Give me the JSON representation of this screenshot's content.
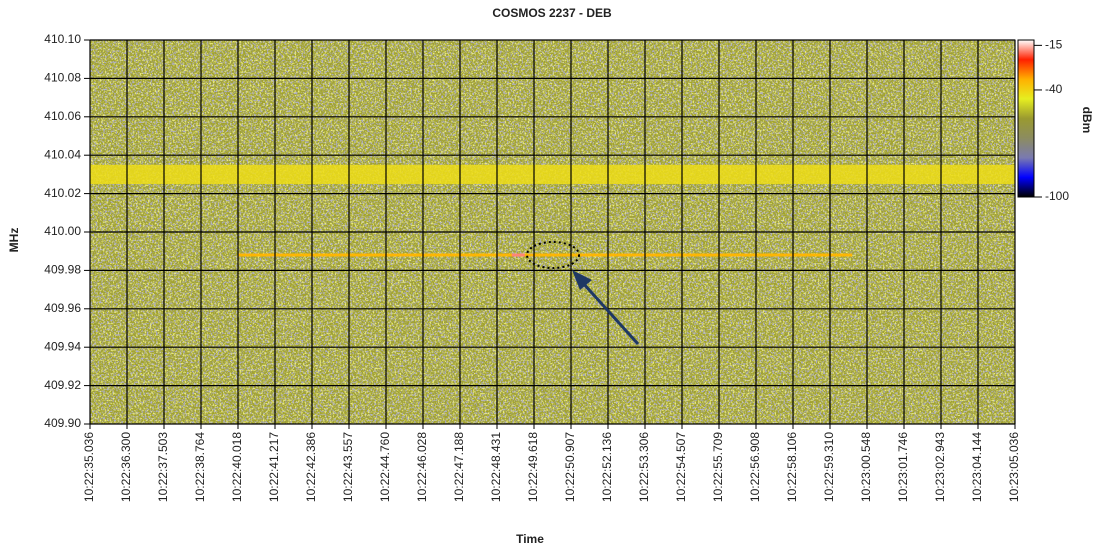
{
  "chart_data": {
    "type": "spectrogram",
    "title": "COSMOS 2237 - DEB",
    "xlabel": "Time",
    "ylabel": "MHz",
    "categories": [
      "10:22:35.036",
      "10:22:36.300",
      "10:22:37.503",
      "10:22:38.764",
      "10:22:40.018",
      "10:22:41.217",
      "10:22:42.386",
      "10:22:43.557",
      "10:22:44.760",
      "10:22:46.028",
      "10:22:47.188",
      "10:22:48.431",
      "10:22:49.618",
      "10:22:50.907",
      "10:22:52.136",
      "10:22:53.306",
      "10:22:54.507",
      "10:22:55.709",
      "10:22:56.908",
      "10:22:58.106",
      "10:22:59.310",
      "10:23:00.548",
      "10:23:01.746",
      "10:23:02.943",
      "10:23:04.144",
      "10:23:05.036"
    ],
    "ylim": [
      409.9,
      410.1
    ],
    "yticks": [
      {
        "value": 409.9,
        "label": "409.90"
      },
      409.92,
      409.94,
      409.96,
      409.98,
      {
        "value": 410.0,
        "label": "410.00"
      },
      410.02,
      410.04,
      410.06,
      410.08,
      {
        "value": 410.1,
        "label": "410.10"
      }
    ],
    "grid": true,
    "noise_level": -55,
    "bands": [
      {
        "y": [
          410.025,
          410.035
        ],
        "value": -42
      }
    ],
    "signals": [
      {
        "x": [
          4,
          20.6
        ],
        "y": 409.988,
        "value": -35
      },
      {
        "x": [
          11.4,
          11.75
        ],
        "y": 409.988,
        "value": -18
      }
    ],
    "colorbar": {
      "label": "dBm",
      "clim": [
        -100,
        -12
      ],
      "ticks": [
        -15,
        -40,
        -100
      ],
      "colors": [
        "#000000",
        "#0000ff",
        "#7a7ab0",
        "#8c8c60",
        "#9a9a30",
        "#e6ee20",
        "#ffb000",
        "#ff2000",
        "#ffffff"
      ]
    }
  }
}
